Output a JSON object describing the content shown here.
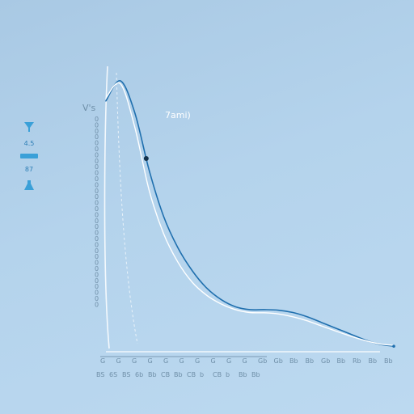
{
  "chart_data": {
    "type": "line",
    "title": "",
    "xlabel": "",
    "ylabel": "",
    "annotation": "7ami)",
    "y_axis_symbol": "V's",
    "x": [
      0,
      0.5,
      1,
      1.5,
      2,
      2.5,
      3,
      3.5,
      4,
      4.5,
      5,
      5.5,
      6,
      6.5,
      7,
      7.5,
      8,
      8.5,
      9,
      9.5,
      10
    ],
    "series": [
      {
        "name": "",
        "values": [
          86,
          93,
          82,
          62,
          46,
          35,
          27,
          21,
          17,
          14.5,
          13.5,
          13.5,
          13.3,
          12.5,
          11,
          9,
          7,
          5,
          3,
          1.5,
          0.8
        ]
      },
      {
        "name": "",
        "values": [
          87,
          92,
          77,
          55,
          40,
          30,
          23,
          18.5,
          15.5,
          13.5,
          12.5,
          12.4,
          12,
          11,
          9.6,
          7.8,
          6,
          4.3,
          2.8,
          1.6,
          1.1
        ]
      }
    ],
    "marker": {
      "x": 1.4,
      "y": 66
    },
    "xlim": [
      0,
      10
    ],
    "ylim": [
      0,
      100
    ],
    "x_tick_labels": [
      "G",
      "G",
      "G",
      "G",
      "G",
      "G",
      "G",
      "G",
      "G",
      "G",
      "Gb",
      "Gb",
      "Bb",
      "Bb",
      "Gb",
      "Bb",
      "Rb",
      "Bb",
      "Bb"
    ],
    "x_tick_labels_lower": [
      "BS",
      "6S",
      "BS",
      "6b",
      "Bb",
      "CB",
      "Bb",
      "CB",
      "b",
      "CB",
      "b",
      "Bb",
      "Bb"
    ],
    "y_tick_labels": [
      "0",
      "0",
      "0",
      "0",
      "0",
      "0",
      "0",
      "0",
      "0",
      "0",
      "0",
      "0",
      "0",
      "0",
      "0",
      "0",
      "0",
      "0",
      "0",
      "0",
      "0",
      "0",
      "0",
      "0",
      "0",
      "0",
      "0",
      "0",
      "0",
      "0",
      "0",
      "0"
    ],
    "grid": false,
    "legend": "none",
    "colors": {
      "series_dark": "#1f6fae",
      "series_light": "#ffffff",
      "side_accent": "#3aa0d8"
    }
  },
  "side_widget": {
    "value_top": "4.5",
    "value_bottom": "87"
  }
}
